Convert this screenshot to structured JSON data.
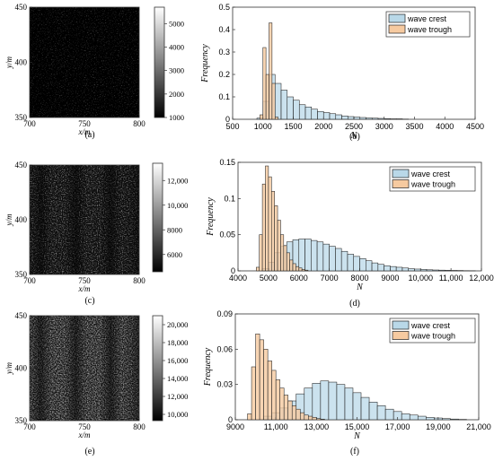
{
  "panels": [
    {
      "letter": "(a)",
      "x_axis": {
        "title": "x/m",
        "ticks": [
          "700",
          "750",
          "800"
        ]
      },
      "y_axis": {
        "title": "y/m",
        "ticks": [
          "350",
          "400",
          "450"
        ]
      },
      "colorbar_ticks": [
        "1000",
        "2000",
        "3000",
        "4000",
        "5000"
      ]
    },
    {
      "letter": "(b)"
    },
    {
      "letter": "(c)",
      "x_axis": {
        "title": "x/m",
        "ticks": [
          "700",
          "750",
          "800"
        ]
      },
      "y_axis": {
        "title": "y/m",
        "ticks": [
          "350",
          "400",
          "450"
        ]
      },
      "colorbar_ticks": [
        "6000",
        "8000",
        "10,000",
        "12,000"
      ]
    },
    {
      "letter": "(d)"
    },
    {
      "letter": "(e)",
      "x_axis": {
        "title": "x/m",
        "ticks": [
          "700",
          "750",
          "800"
        ]
      },
      "y_axis": {
        "title": "y/m",
        "ticks": [
          "350",
          "400",
          "450"
        ]
      },
      "colorbar_ticks": [
        "10,000",
        "12,000",
        "14,000",
        "16,000",
        "18,000",
        "20,000"
      ]
    },
    {
      "letter": "(f)"
    }
  ],
  "colors": {
    "crest_fill": "#b9d8e8",
    "trough_fill": "#f6caa0",
    "edge": "#222222",
    "axis": "#333333"
  },
  "chart_data": [
    {
      "type": "bar",
      "panel": "(b)",
      "xlabel": "N",
      "ylabel": "Frequency",
      "xlim": [
        500,
        4500
      ],
      "ylim": [
        0,
        0.5
      ],
      "xticks": [
        "500",
        "1000",
        "1500",
        "2000",
        "2500",
        "3000",
        "3500",
        "4000",
        "4500"
      ],
      "yticks": [
        "0",
        "0.1",
        "0.2",
        "0.3",
        "0.4",
        "0.5"
      ],
      "legend": "top-right",
      "series": [
        {
          "name": "wave crest",
          "bins": [
            [
              900,
              1000
            ],
            [
              1000,
              1100
            ],
            [
              1100,
              1200
            ],
            [
              1200,
              1300
            ],
            [
              1300,
              1400
            ],
            [
              1400,
              1500
            ],
            [
              1500,
              1600
            ],
            [
              1600,
              1700
            ],
            [
              1700,
              1800
            ],
            [
              1800,
              1900
            ],
            [
              1900,
              2000
            ],
            [
              2000,
              2100
            ],
            [
              2100,
              2200
            ],
            [
              2200,
              2300
            ],
            [
              2300,
              2400
            ],
            [
              2400,
              2500
            ],
            [
              2500,
              2600
            ],
            [
              2600,
              2700
            ],
            [
              2700,
              2800
            ],
            [
              2800,
              2900
            ],
            [
              2900,
              3000
            ],
            [
              3000,
              3100
            ],
            [
              3100,
              3200
            ],
            [
              3200,
              3300
            ],
            [
              3300,
              3400
            ]
          ],
          "values": [
            0.005,
            0.08,
            0.2,
            0.16,
            0.13,
            0.1,
            0.085,
            0.065,
            0.055,
            0.045,
            0.035,
            0.03,
            0.025,
            0.02,
            0.015,
            0.012,
            0.01,
            0.008,
            0.006,
            0.005,
            0.004,
            0.003,
            0.002,
            0.002,
            0.001
          ]
        },
        {
          "name": "wave trough",
          "bins": [
            [
              950,
              1000
            ],
            [
              1000,
              1050
            ],
            [
              1050,
              1100
            ],
            [
              1100,
              1150
            ],
            [
              1150,
              1200
            ],
            [
              1200,
              1250
            ]
          ],
          "values": [
            0.02,
            0.32,
            0.2,
            0.43,
            0.16,
            0.01
          ]
        }
      ]
    },
    {
      "type": "bar",
      "panel": "(d)",
      "xlabel": "N",
      "ylabel": "Frequency",
      "xlim": [
        4000,
        12000
      ],
      "ylim": [
        0,
        0.15
      ],
      "xticks": [
        "4000",
        "5000",
        "6000",
        "7000",
        "8000",
        "9000",
        "10,000",
        "11,000",
        "12,000"
      ],
      "yticks": [
        "0",
        "0.05",
        "0.1",
        "0.15"
      ],
      "legend": "top-right",
      "series": [
        {
          "name": "wave crest",
          "bins": [
            [
              4800,
              5000
            ],
            [
              5000,
              5200
            ],
            [
              5200,
              5400
            ],
            [
              5400,
              5600
            ],
            [
              5600,
              5800
            ],
            [
              5800,
              6000
            ],
            [
              6000,
              6200
            ],
            [
              6200,
              6400
            ],
            [
              6400,
              6600
            ],
            [
              6600,
              6800
            ],
            [
              6800,
              7000
            ],
            [
              7000,
              7200
            ],
            [
              7200,
              7400
            ],
            [
              7400,
              7600
            ],
            [
              7600,
              7800
            ],
            [
              7800,
              8000
            ],
            [
              8000,
              8200
            ],
            [
              8200,
              8400
            ],
            [
              8400,
              8600
            ],
            [
              8600,
              8800
            ],
            [
              8800,
              9000
            ],
            [
              9000,
              9200
            ],
            [
              9200,
              9400
            ],
            [
              9400,
              9600
            ],
            [
              9600,
              9800
            ],
            [
              9800,
              10000
            ],
            [
              10000,
              10200
            ],
            [
              10200,
              10400
            ],
            [
              10400,
              10600
            ],
            [
              10600,
              10800
            ],
            [
              10800,
              11000
            ],
            [
              11000,
              11200
            ],
            [
              11200,
              11400
            ],
            [
              11400,
              11600
            ],
            [
              11600,
              11800
            ]
          ],
          "values": [
            0.003,
            0.012,
            0.025,
            0.034,
            0.04,
            0.043,
            0.044,
            0.044,
            0.042,
            0.04,
            0.037,
            0.034,
            0.031,
            0.027,
            0.023,
            0.02,
            0.017,
            0.014,
            0.011,
            0.009,
            0.007,
            0.006,
            0.005,
            0.004,
            0.003,
            0.0025,
            0.002,
            0.0015,
            0.0012,
            0.001,
            0.0008,
            0.0006,
            0.0005,
            0.0003,
            0.0002
          ]
        },
        {
          "name": "wave trough",
          "bins": [
            [
              4600,
              4700
            ],
            [
              4700,
              4800
            ],
            [
              4800,
              4900
            ],
            [
              4900,
              5000
            ],
            [
              5000,
              5100
            ],
            [
              5100,
              5200
            ],
            [
              5200,
              5300
            ],
            [
              5300,
              5400
            ],
            [
              5400,
              5500
            ],
            [
              5500,
              5600
            ],
            [
              5600,
              5700
            ],
            [
              5700,
              5800
            ],
            [
              5800,
              5900
            ],
            [
              5900,
              6000
            ],
            [
              6000,
              6100
            ],
            [
              6100,
              6200
            ],
            [
              6200,
              6300
            ]
          ],
          "values": [
            0.005,
            0.05,
            0.12,
            0.145,
            0.13,
            0.11,
            0.09,
            0.07,
            0.05,
            0.035,
            0.025,
            0.015,
            0.01,
            0.006,
            0.004,
            0.002,
            0.001
          ]
        }
      ]
    },
    {
      "type": "bar",
      "panel": "(f)",
      "xlabel": "N",
      "ylabel": "Frequency",
      "xlim": [
        9000,
        21000
      ],
      "ylim": [
        0,
        0.09
      ],
      "xticks": [
        "9000",
        "11,000",
        "13,000",
        "15,000",
        "17,000",
        "19,000",
        "21,000"
      ],
      "yticks": [
        "0",
        "0.03",
        "0.06",
        "0.09"
      ],
      "legend": "top-right",
      "series": [
        {
          "name": "wave crest",
          "bins": [
            [
              10400,
              10800
            ],
            [
              10800,
              11200
            ],
            [
              11200,
              11600
            ],
            [
              11600,
              12000
            ],
            [
              12000,
              12400
            ],
            [
              12400,
              12800
            ],
            [
              12800,
              13200
            ],
            [
              13200,
              13600
            ],
            [
              13600,
              14000
            ],
            [
              14000,
              14400
            ],
            [
              14400,
              14800
            ],
            [
              14800,
              15200
            ],
            [
              15200,
              15600
            ],
            [
              15600,
              16000
            ],
            [
              16000,
              16400
            ],
            [
              16400,
              16800
            ],
            [
              16800,
              17200
            ],
            [
              17200,
              17600
            ],
            [
              17600,
              18000
            ],
            [
              18000,
              18400
            ],
            [
              18400,
              18800
            ],
            [
              18800,
              19200
            ],
            [
              19200,
              19600
            ],
            [
              19600,
              20000
            ],
            [
              20000,
              20400
            ]
          ],
          "values": [
            0.003,
            0.006,
            0.01,
            0.016,
            0.022,
            0.027,
            0.031,
            0.033,
            0.032,
            0.03,
            0.027,
            0.023,
            0.019,
            0.015,
            0.012,
            0.009,
            0.007,
            0.005,
            0.004,
            0.003,
            0.002,
            0.0015,
            0.001,
            0.0006,
            0.0003
          ]
        },
        {
          "name": "wave trough",
          "bins": [
            [
              9600,
              9800
            ],
            [
              9800,
              10000
            ],
            [
              10000,
              10200
            ],
            [
              10200,
              10400
            ],
            [
              10400,
              10600
            ],
            [
              10600,
              10800
            ],
            [
              10800,
              11000
            ],
            [
              11000,
              11200
            ],
            [
              11200,
              11400
            ],
            [
              11400,
              11600
            ],
            [
              11600,
              11800
            ],
            [
              11800,
              12000
            ],
            [
              12000,
              12200
            ],
            [
              12200,
              12400
            ],
            [
              12400,
              12600
            ],
            [
              12600,
              12800
            ],
            [
              12800,
              13000
            ],
            [
              13000,
              13200
            ],
            [
              13200,
              13400
            ]
          ],
          "values": [
            0.005,
            0.045,
            0.073,
            0.068,
            0.06,
            0.05,
            0.042,
            0.034,
            0.027,
            0.021,
            0.016,
            0.012,
            0.009,
            0.006,
            0.004,
            0.003,
            0.002,
            0.001,
            0.0005
          ]
        }
      ]
    }
  ]
}
